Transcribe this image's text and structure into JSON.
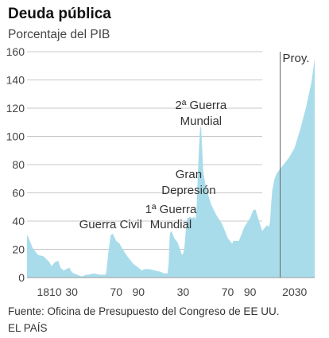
{
  "title": "Deuda pública",
  "subtitle": "Porcentaje del PIB",
  "source": "Fuente: Oficina de Presupuesto del Congreso de EE UU.",
  "credit": "EL PAÍS",
  "colors": {
    "area": "#a9dcea",
    "grid": "#c8c8c8",
    "divider": "#666666"
  },
  "chart_data": {
    "type": "area",
    "title": "Deuda pública",
    "subtitle": "Porcentaje del PIB",
    "xlim": [
      1790,
      2048
    ],
    "ylim": [
      0,
      160
    ],
    "yticks": [
      0,
      20,
      40,
      60,
      80,
      100,
      120,
      140,
      160
    ],
    "ytick_labels": [
      "0",
      "20",
      "40",
      "60",
      "80",
      "100",
      "120",
      "140",
      "160"
    ],
    "xticks": [
      1810,
      1830,
      1870,
      1890,
      1930,
      1970,
      1990,
      2030
    ],
    "xtick_labels": [
      "1810",
      "30",
      "70",
      "90",
      "30",
      "70",
      "90",
      "2030"
    ],
    "projection_start": 2017,
    "projection_label": "Proy.",
    "annotations": [
      {
        "year": 1865,
        "lines": [
          "Guerra Civil"
        ]
      },
      {
        "year": 1919,
        "lines": [
          "1ª Guerra",
          "Mundial"
        ]
      },
      {
        "year": 1935,
        "lines": [
          "Gran",
          "Depresión"
        ]
      },
      {
        "year": 1946,
        "lines": [
          "2ª Guerra",
          "Mundial"
        ]
      }
    ],
    "x": [
      1790,
      1791,
      1795,
      1800,
      1805,
      1810,
      1812,
      1815,
      1818,
      1820,
      1823,
      1825,
      1828,
      1830,
      1832,
      1835,
      1838,
      1840,
      1843,
      1845,
      1850,
      1855,
      1860,
      1861,
      1863,
      1865,
      1867,
      1870,
      1873,
      1875,
      1880,
      1885,
      1890,
      1893,
      1895,
      1900,
      1905,
      1910,
      1913,
      1916,
      1917,
      1918,
      1919,
      1920,
      1922,
      1925,
      1929,
      1930,
      1931,
      1932,
      1933,
      1934,
      1936,
      1938,
      1940,
      1941,
      1942,
      1943,
      1944,
      1945,
      1946,
      1947,
      1948,
      1950,
      1952,
      1955,
      1960,
      1965,
      1970,
      1974,
      1975,
      1980,
      1985,
      1990,
      1993,
      1995,
      2000,
      2001,
      2005,
      2007,
      2008,
      2009,
      2010,
      2012,
      2014,
      2016,
      2017,
      2020,
      2025,
      2030,
      2035,
      2040,
      2045,
      2048
    ],
    "y": [
      30,
      29,
      21,
      16,
      15,
      11,
      8,
      11,
      12,
      7,
      5,
      6,
      7,
      4,
      3,
      2,
      1,
      1,
      2,
      2,
      3,
      2,
      2,
      3,
      18,
      30,
      31,
      26,
      24,
      21,
      15,
      10,
      7,
      5,
      6,
      6,
      5,
      4,
      3,
      3,
      10,
      30,
      33,
      32,
      28,
      25,
      16,
      17,
      20,
      29,
      40,
      42,
      43,
      42,
      43,
      41,
      48,
      70,
      88,
      104,
      108,
      93,
      75,
      66,
      60,
      52,
      44,
      38,
      28,
      24,
      26,
      26,
      36,
      42,
      48,
      48,
      35,
      33,
      37,
      36,
      40,
      53,
      62,
      70,
      74,
      76,
      77,
      80,
      85,
      92,
      105,
      120,
      138,
      155
    ]
  }
}
